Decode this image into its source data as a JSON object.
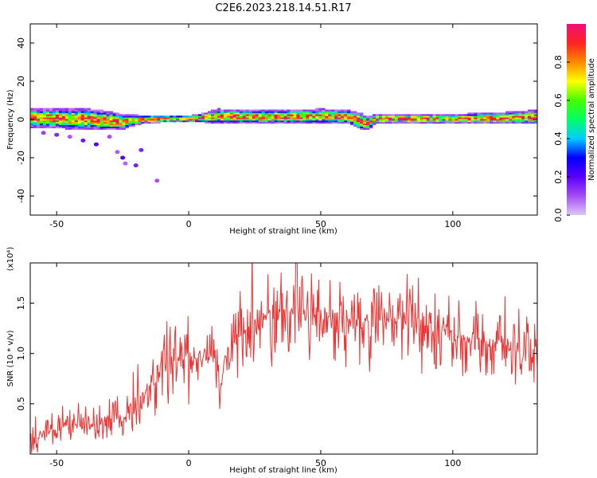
{
  "title": "C2E6.2023.218.14.51.R17",
  "colors": {
    "snr_line": "#ee3333",
    "background": "#ffffff",
    "colormap": [
      "#dcc7f7",
      "#a64df2",
      "#5a00ff",
      "#0000ff",
      "#00ccff",
      "#00ff66",
      "#44ff00",
      "#ffff00",
      "#ff8800",
      "#ff2222",
      "#ee1177"
    ]
  },
  "chart_data": [
    {
      "type": "heatmap",
      "title": "C2E6.2023.218.14.51.R17",
      "xlabel": "Height of straight line (km)",
      "ylabel": "Frequency (Hz)",
      "xlim": [
        -60,
        132
      ],
      "ylim": [
        -50,
        50
      ],
      "xticks": [
        -50,
        0,
        50,
        100
      ],
      "yticks": [
        -40,
        -20,
        0,
        20,
        40
      ],
      "colorbar": {
        "label": "Normalized spectral amplitude",
        "range": [
          0,
          1
        ],
        "ticks": [
          "0.0",
          "0.2",
          "0.4",
          "0.6",
          "0.8"
        ]
      },
      "band": {
        "x": [
          -60,
          -40,
          -30,
          -25,
          -20,
          -10,
          0,
          5,
          10,
          30,
          50,
          60,
          64,
          67,
          70,
          80,
          100,
          120,
          132
        ],
        "center_hz": [
          0.5,
          0,
          -1,
          -1.5,
          -0.5,
          0,
          0,
          0.5,
          1.5,
          1,
          1.5,
          1,
          -1,
          -2.5,
          0,
          0,
          0,
          0.5,
          1
        ],
        "half_width_hz": [
          4,
          4.5,
          4,
          3,
          2,
          1.5,
          1.5,
          2,
          3,
          3,
          3,
          3,
          3.5,
          3,
          2,
          2,
          2,
          2.5,
          3
        ]
      },
      "scatter_features": [
        {
          "x": -55,
          "y": -7
        },
        {
          "x": -50,
          "y": -8
        },
        {
          "x": -45,
          "y": -9
        },
        {
          "x": -40,
          "y": -11
        },
        {
          "x": -35,
          "y": -13
        },
        {
          "x": -30,
          "y": -9
        },
        {
          "x": -27,
          "y": -17
        },
        {
          "x": -25,
          "y": -20
        },
        {
          "x": -24,
          "y": -23
        },
        {
          "x": -20,
          "y": -24
        },
        {
          "x": -18,
          "y": -16
        },
        {
          "x": -12,
          "y": -32
        }
      ]
    },
    {
      "type": "line",
      "xlabel": "Height of straight line (km)",
      "ylabel": "SNR (10 * v/v)",
      "yscale_label": "(x10⁴)",
      "xlim": [
        -60,
        132
      ],
      "ylim": [
        0,
        1.9
      ],
      "xticks": [
        -50,
        0,
        50,
        100
      ],
      "yticks": [
        0.5,
        1.0,
        1.5
      ],
      "ytick_labels": [
        "0.5",
        "1.0",
        "1.5"
      ],
      "series": [
        {
          "x": [
            -60,
            -55,
            -50,
            -45,
            -40,
            -35,
            -30,
            -25,
            -20,
            -15,
            -10,
            -5,
            0,
            5,
            10,
            12,
            15,
            20,
            25,
            30,
            35,
            40,
            45,
            50,
            55,
            60,
            65,
            70,
            75,
            80,
            85,
            90,
            95,
            100,
            105,
            110,
            115,
            120,
            125,
            130,
            132
          ],
          "values": [
            0.15,
            0.2,
            0.25,
            0.28,
            0.3,
            0.3,
            0.35,
            0.35,
            0.5,
            0.65,
            0.85,
            0.92,
            0.95,
            0.95,
            1.05,
            0.6,
            1.05,
            1.2,
            1.3,
            1.38,
            1.42,
            1.42,
            1.4,
            1.38,
            1.36,
            1.35,
            1.33,
            1.33,
            1.33,
            1.33,
            1.3,
            1.27,
            1.23,
            1.17,
            1.13,
            1.1,
            1.07,
            1.05,
            1.03,
            1.02,
            1.0
          ]
        }
      ]
    }
  ]
}
